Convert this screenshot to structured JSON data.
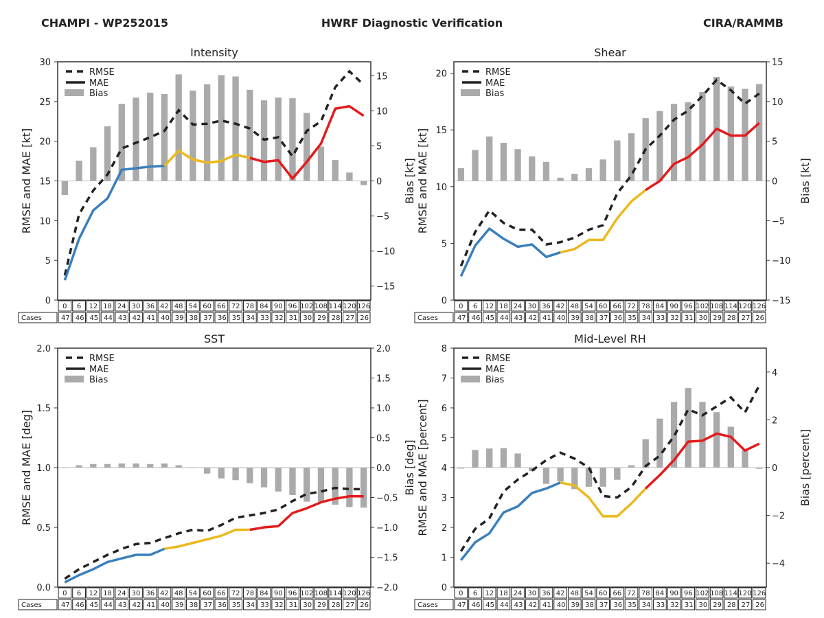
{
  "header": {
    "left": "CHAMPI - WP252015",
    "center": "HWRF Diagnostic Verification",
    "right": "CIRA/RAMMB"
  },
  "legend": {
    "rmse": "RMSE",
    "mae": "MAE",
    "bias": "Bias"
  },
  "colors": {
    "rmse": "#222222",
    "bias": "#aaaaaa",
    "mae_segments": [
      "#3a7fbd",
      "#ebb91c",
      "#e41a1c"
    ]
  },
  "table": {
    "row_label": "Cases",
    "hours": [
      "0",
      "6",
      "12",
      "18",
      "24",
      "30",
      "36",
      "42",
      "48",
      "54",
      "60",
      "66",
      "72",
      "78",
      "84",
      "90",
      "96",
      "102",
      "108",
      "114",
      "120",
      "126"
    ],
    "cases": [
      "47",
      "46",
      "45",
      "44",
      "43",
      "42",
      "41",
      "40",
      "39",
      "38",
      "37",
      "36",
      "35",
      "34",
      "33",
      "32",
      "31",
      "30",
      "29",
      "28",
      "27",
      "26"
    ]
  },
  "chart_data": [
    {
      "id": "intensity",
      "type": "line",
      "title": "Intensity",
      "ylabel": "RMSE and MAE [kt]",
      "y2label": "Bias [kt]",
      "ylim": [
        0,
        30
      ],
      "yticks": [
        0,
        5,
        10,
        15,
        20,
        25,
        30
      ],
      "y2lim": [
        -17,
        17
      ],
      "y2ticks": [
        -15,
        -10,
        -5,
        0,
        5,
        10,
        15
      ],
      "y2tick_labels": [
        "−15",
        "−10",
        "−5",
        "0",
        "5",
        "10",
        "15"
      ],
      "ytick_labels": [
        "0",
        "5",
        "10",
        "15",
        "20",
        "25",
        "30"
      ],
      "x": [
        0,
        6,
        12,
        18,
        24,
        30,
        36,
        42,
        48,
        54,
        60,
        66,
        72,
        78,
        84,
        90,
        96,
        102,
        108,
        114,
        120,
        126
      ],
      "mae_color_breaks": [
        42,
        78
      ],
      "series": [
        {
          "name": "RMSE",
          "values": [
            3.1,
            10.8,
            13.8,
            15.8,
            19.1,
            19.8,
            20.5,
            21.3,
            23.9,
            22.1,
            22.2,
            22.6,
            22.2,
            21.6,
            20.2,
            20.5,
            18.1,
            21.3,
            22.5,
            26.8,
            28.8,
            27.1
          ]
        },
        {
          "name": "MAE",
          "values": [
            2.5,
            7.7,
            11.3,
            12.8,
            16.4,
            16.6,
            16.8,
            16.9,
            18.8,
            17.7,
            17.3,
            17.5,
            18.3,
            17.9,
            17.4,
            17.6,
            15.3,
            17.4,
            19.7,
            24.1,
            24.4,
            23.2
          ]
        },
        {
          "name": "Bias",
          "axis": "right",
          "values": [
            -2.0,
            2.9,
            4.8,
            7.8,
            11.0,
            11.9,
            12.6,
            12.4,
            15.2,
            12.9,
            13.8,
            15.1,
            14.9,
            13.0,
            11.5,
            11.9,
            11.8,
            9.7,
            4.9,
            3.0,
            1.2,
            -0.6
          ]
        }
      ]
    },
    {
      "id": "shear",
      "type": "line",
      "title": "Shear",
      "ylabel": "RMSE and MAE [kt]",
      "y2label": "Bias [kt]",
      "ylim": [
        0,
        21
      ],
      "yticks": [
        0,
        5,
        10,
        15,
        20
      ],
      "ytick_labels": [
        "0",
        "5",
        "10",
        "15",
        "20"
      ],
      "y2lim": [
        -15,
        15
      ],
      "y2ticks": [
        -15,
        -10,
        -5,
        0,
        5,
        10,
        15
      ],
      "y2tick_labels": [
        "−15",
        "−10",
        "−5",
        "0",
        "5",
        "10",
        "15"
      ],
      "x": [
        0,
        6,
        12,
        18,
        24,
        30,
        36,
        42,
        48,
        54,
        60,
        66,
        72,
        78,
        84,
        90,
        96,
        102,
        108,
        114,
        120,
        126
      ],
      "mae_color_breaks": [
        42,
        78
      ],
      "series": [
        {
          "name": "RMSE",
          "values": [
            3.0,
            6.0,
            7.9,
            6.8,
            6.2,
            6.2,
            4.9,
            5.1,
            5.5,
            6.2,
            6.6,
            9.4,
            11.0,
            13.3,
            14.5,
            15.9,
            16.7,
            18.0,
            19.4,
            18.5,
            17.3,
            18.2
          ]
        },
        {
          "name": "MAE",
          "values": [
            2.1,
            4.8,
            6.3,
            5.4,
            4.7,
            4.9,
            3.8,
            4.2,
            4.5,
            5.3,
            5.3,
            7.2,
            8.7,
            9.7,
            10.5,
            12.0,
            12.6,
            13.7,
            15.1,
            14.5,
            14.5,
            15.6
          ]
        },
        {
          "name": "Bias",
          "axis": "right",
          "values": [
            1.6,
            3.9,
            5.6,
            4.8,
            4.0,
            3.1,
            2.4,
            0.4,
            0.9,
            1.6,
            2.7,
            5.1,
            6.0,
            7.9,
            8.8,
            9.7,
            9.9,
            11.2,
            13.1,
            11.9,
            11.6,
            12.2
          ]
        }
      ]
    },
    {
      "id": "sst",
      "type": "line",
      "title": "SST",
      "ylabel": "RMSE and MAE [deg]",
      "y2label": "Bias [deg]",
      "ylim": [
        0,
        2
      ],
      "yticks": [
        0,
        0.5,
        1.0,
        1.5,
        2.0
      ],
      "ytick_labels": [
        "0.0",
        "0.5",
        "1.0",
        "1.5",
        "2.0"
      ],
      "y2lim": [
        -2,
        2
      ],
      "y2ticks": [
        -2,
        -1.5,
        -1,
        -0.5,
        0,
        0.5,
        1,
        1.5,
        2
      ],
      "y2tick_labels": [
        "−2.0",
        "−1.5",
        "−1.0",
        "−0.5",
        "0.0",
        "0.5",
        "1.0",
        "1.5",
        "2.0"
      ],
      "x": [
        0,
        6,
        12,
        18,
        24,
        30,
        36,
        42,
        48,
        54,
        60,
        66,
        72,
        78,
        84,
        90,
        96,
        102,
        108,
        114,
        120,
        126
      ],
      "mae_color_breaks": [
        42,
        78
      ],
      "series": [
        {
          "name": "RMSE",
          "values": [
            0.07,
            0.15,
            0.21,
            0.27,
            0.32,
            0.36,
            0.37,
            0.41,
            0.45,
            0.48,
            0.47,
            0.52,
            0.58,
            0.6,
            0.62,
            0.65,
            0.72,
            0.78,
            0.8,
            0.83,
            0.82,
            0.82
          ]
        },
        {
          "name": "MAE",
          "values": [
            0.04,
            0.1,
            0.15,
            0.21,
            0.24,
            0.27,
            0.27,
            0.32,
            0.34,
            0.37,
            0.4,
            0.43,
            0.48,
            0.48,
            0.5,
            0.51,
            0.62,
            0.66,
            0.71,
            0.74,
            0.76,
            0.76
          ]
        },
        {
          "name": "Bias",
          "axis": "right",
          "values": [
            -0.005,
            0.04,
            0.06,
            0.06,
            0.07,
            0.07,
            0.06,
            0.07,
            0.04,
            -0.005,
            -0.1,
            -0.18,
            -0.21,
            -0.26,
            -0.33,
            -0.4,
            -0.46,
            -0.57,
            -0.57,
            -0.62,
            -0.66,
            -0.67
          ]
        }
      ]
    },
    {
      "id": "rh",
      "type": "line",
      "title": "Mid-Level RH",
      "ylabel": "RMSE and MAE [percent]",
      "y2label": "Bias [percent]",
      "ylim": [
        0,
        8
      ],
      "yticks": [
        0,
        1,
        2,
        3,
        4,
        5,
        6,
        7,
        8
      ],
      "ytick_labels": [
        "0",
        "1",
        "2",
        "3",
        "4",
        "5",
        "6",
        "7",
        "8"
      ],
      "y2lim": [
        -5,
        5
      ],
      "y2ticks": [
        -4,
        -2,
        0,
        2,
        4
      ],
      "y2tick_labels": [
        "−4",
        "−2",
        "0",
        "2",
        "4"
      ],
      "x": [
        0,
        6,
        12,
        18,
        24,
        30,
        36,
        42,
        48,
        54,
        60,
        66,
        72,
        78,
        84,
        90,
        96,
        102,
        108,
        114,
        120,
        126
      ],
      "mae_color_breaks": [
        42,
        78
      ],
      "series": [
        {
          "name": "RMSE",
          "values": [
            1.2,
            1.95,
            2.3,
            3.2,
            3.6,
            3.9,
            4.25,
            4.5,
            4.3,
            4.0,
            3.05,
            3.0,
            3.35,
            4.05,
            4.4,
            5.05,
            5.95,
            5.75,
            6.05,
            6.35,
            5.85,
            6.75
          ]
        },
        {
          "name": "MAE",
          "values": [
            0.9,
            1.5,
            1.8,
            2.5,
            2.7,
            3.15,
            3.3,
            3.5,
            3.4,
            3.0,
            2.37,
            2.37,
            2.8,
            3.3,
            3.75,
            4.25,
            4.87,
            4.9,
            5.14,
            5.03,
            4.57,
            4.8
          ]
        },
        {
          "name": "Bias",
          "axis": "right",
          "values": [
            -0.04,
            0.74,
            0.8,
            0.82,
            0.59,
            -0.15,
            -0.68,
            -0.58,
            -0.9,
            -0.8,
            -0.8,
            -0.51,
            0.1,
            1.19,
            2.05,
            2.75,
            3.33,
            2.75,
            2.32,
            1.71,
            0.72,
            -0.05
          ]
        }
      ]
    }
  ]
}
